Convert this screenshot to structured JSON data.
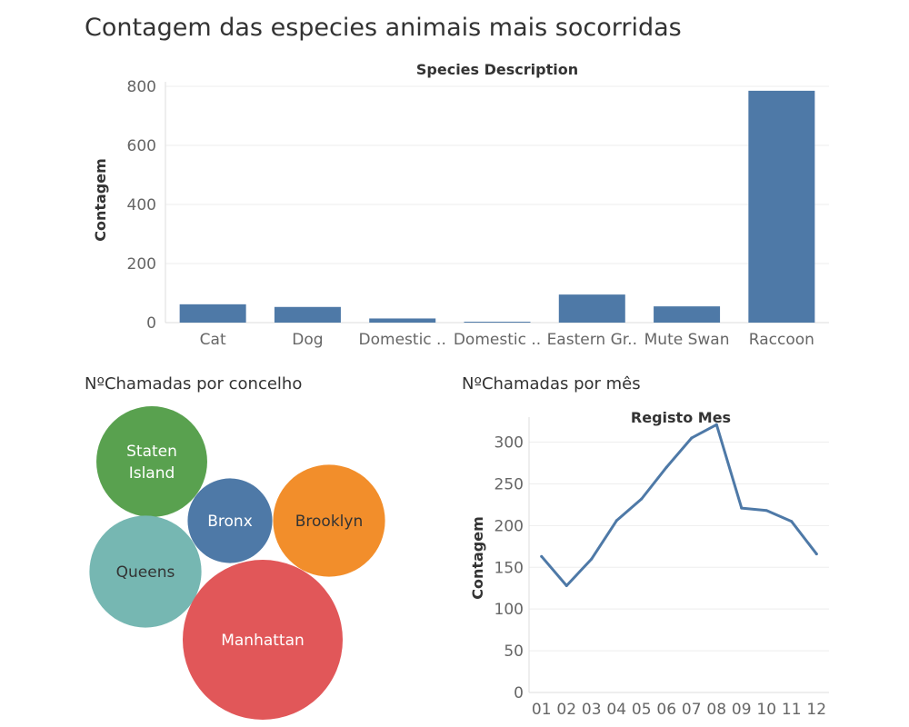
{
  "title": "Contagem das especies animais mais socorridas",
  "chart_data": [
    {
      "type": "bar",
      "title": "Species Description",
      "xlabel": "",
      "ylabel": "Contagem",
      "categories": [
        "Cat",
        "Dog",
        "Domestic ..",
        "Domestic ..",
        "Eastern Gr..",
        "Mute Swan",
        "Raccoon"
      ],
      "values": [
        62,
        53,
        14,
        3,
        95,
        55,
        785
      ],
      "yticks": [
        0,
        200,
        400,
        600,
        800
      ],
      "ylim": [
        0,
        800
      ],
      "grid": true,
      "colors": [
        "#4e79a7"
      ]
    },
    {
      "type": "bubble",
      "title": "NºChamadas por concelho",
      "categories": [
        "Staten Island",
        "Bronx",
        "Brooklyn",
        "Queens",
        "Manhattan"
      ],
      "values": [
        240,
        140,
        245,
        245,
        500
      ],
      "colors": [
        "#59a14f",
        "#4e79a7",
        "#f28e2b",
        "#76b7b2",
        "#e15759"
      ],
      "label_colors": [
        "#ffffff",
        "#ffffff",
        "#333333",
        "#333333",
        "#ffffff"
      ]
    },
    {
      "type": "line",
      "title": "NºChamadas por mês",
      "subtitle": "Registo Mes",
      "xlabel": "",
      "ylabel": "Contagem",
      "x": [
        "01",
        "02",
        "03",
        "04",
        "05",
        "06",
        "07",
        "08",
        "09",
        "10",
        "11",
        "12"
      ],
      "values": [
        163,
        128,
        160,
        206,
        232,
        270,
        305,
        321,
        221,
        218,
        205,
        166
      ],
      "yticks": [
        0,
        50,
        100,
        150,
        200,
        250,
        300
      ],
      "ylim": [
        0,
        330
      ],
      "grid": true,
      "colors": [
        "#4e79a7"
      ]
    }
  ]
}
